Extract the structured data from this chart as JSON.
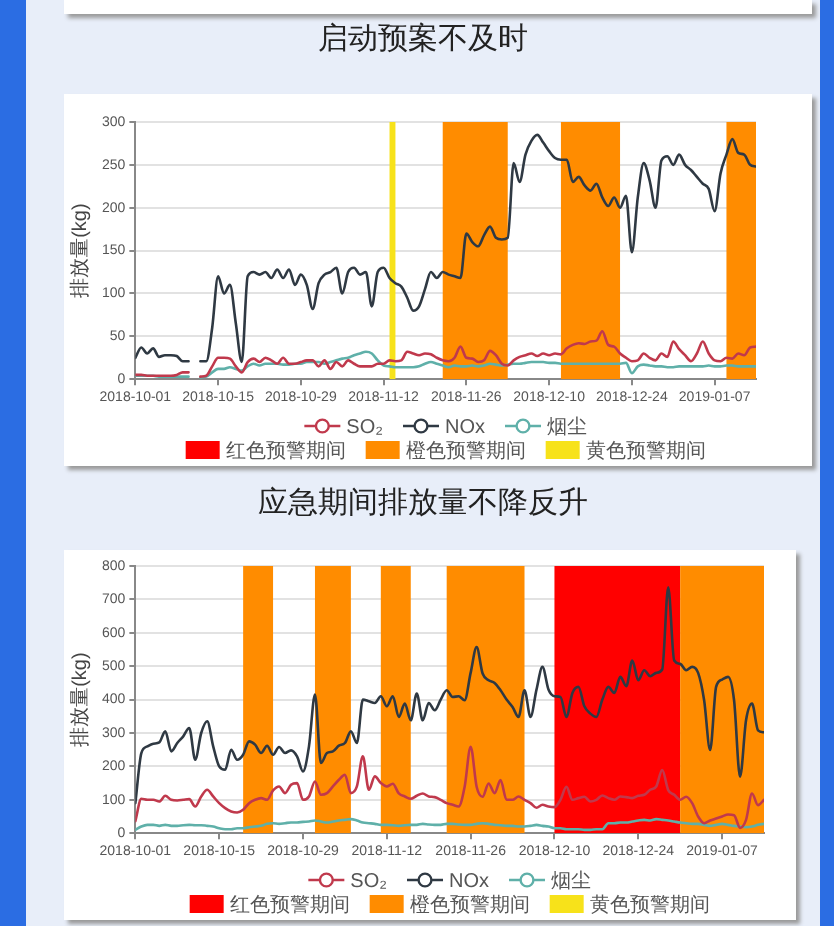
{
  "chart_data": [
    {
      "type": "line",
      "title": "启动预案不及时",
      "ylabel": "排放量(kg)",
      "x": [
        "2018-10-01",
        "2018-10-02",
        "2018-10-03",
        "2018-10-04",
        "2018-10-05",
        "2018-10-06",
        "2018-10-07",
        "2018-10-08",
        "2018-10-09",
        "2018-10-10",
        "2018-10-11",
        "2018-10-12",
        "2018-10-13",
        "2018-10-14",
        "2018-10-15",
        "2018-10-16",
        "2018-10-17",
        "2018-10-18",
        "2018-10-19",
        "2018-10-20",
        "2018-10-21",
        "2018-10-22",
        "2018-10-23",
        "2018-10-24",
        "2018-10-25",
        "2018-10-26",
        "2018-10-27",
        "2018-10-28",
        "2018-10-29",
        "2018-10-30",
        "2018-10-31",
        "2018-11-01",
        "2018-11-02",
        "2018-11-03",
        "2018-11-04",
        "2018-11-05",
        "2018-11-06",
        "2018-11-07",
        "2018-11-08",
        "2018-11-09",
        "2018-11-10",
        "2018-11-11",
        "2018-11-12",
        "2018-11-13",
        "2018-11-14",
        "2018-11-15",
        "2018-11-16",
        "2018-11-17",
        "2018-11-18",
        "2018-11-19",
        "2018-11-20",
        "2018-11-21",
        "2018-11-22",
        "2018-11-23",
        "2018-11-24",
        "2018-11-25",
        "2018-11-26",
        "2018-11-27",
        "2018-11-28",
        "2018-11-29",
        "2018-11-30",
        "2018-12-01",
        "2018-12-02",
        "2018-12-03",
        "2018-12-04",
        "2018-12-05",
        "2018-12-06",
        "2018-12-07",
        "2018-12-08",
        "2018-12-09",
        "2018-12-10",
        "2018-12-11",
        "2018-12-12",
        "2018-12-13",
        "2018-12-14",
        "2018-12-15",
        "2018-12-16",
        "2018-12-17",
        "2018-12-18",
        "2018-12-19",
        "2018-12-20",
        "2018-12-21",
        "2018-12-22",
        "2018-12-23",
        "2018-12-24",
        "2018-12-25",
        "2018-12-26",
        "2018-12-27",
        "2018-12-28",
        "2018-12-29",
        "2018-12-30",
        "2018-12-31",
        "2019-01-01",
        "2019-01-02",
        "2019-01-03",
        "2019-01-04",
        "2019-01-05",
        "2019-01-06",
        "2019-01-07",
        "2019-01-08",
        "2019-01-09",
        "2019-01-10",
        "2019-01-11",
        "2019-01-12",
        "2019-01-13",
        "2019-01-14"
      ],
      "xlim": [
        "2018-10-01",
        "2019-01-14"
      ],
      "xticks": [
        "2018-10-01",
        "2018-10-15",
        "2018-10-29",
        "2018-11-12",
        "2018-11-26",
        "2018-12-10",
        "2018-12-24",
        "2019-01-07"
      ],
      "ylim": [
        0,
        300
      ],
      "yticks": [
        0,
        50,
        100,
        150,
        200,
        250,
        300
      ],
      "grid": "y",
      "legend": "bottom",
      "marker": "none",
      "series": [
        {
          "name": "SO₂",
          "color": "#c0394c",
          "values": [
            5,
            5,
            4,
            4,
            4,
            4,
            4,
            5,
            8,
            8,
            null,
            3,
            4,
            15,
            25,
            25,
            24,
            15,
            8,
            20,
            24,
            20,
            25,
            22,
            18,
            25,
            18,
            18,
            20,
            22,
            22,
            15,
            22,
            12,
            20,
            15,
            22,
            18,
            15,
            15,
            15,
            18,
            18,
            22,
            21,
            22,
            32,
            30,
            28,
            30,
            29,
            25,
            22,
            21,
            25,
            38,
            25,
            24,
            20,
            22,
            33,
            28,
            18,
            16,
            22,
            26,
            28,
            30,
            27,
            30,
            28,
            30,
            29,
            36,
            40,
            42,
            41,
            44,
            45,
            56,
            40,
            38,
            30,
            25,
            21,
            22,
            30,
            25,
            22,
            30,
            26,
            44,
            35,
            28,
            21,
            30,
            44,
            30,
            22,
            21,
            25,
            24,
            30,
            28,
            37,
            38
          ]
        },
        {
          "name": "NOx",
          "color": "#2f3943",
          "values": [
            25,
            37,
            30,
            36,
            26,
            28,
            28,
            27,
            21,
            21,
            null,
            21,
            21,
            60,
            120,
            100,
            110,
            65,
            20,
            120,
            125,
            122,
            125,
            118,
            128,
            118,
            128,
            110,
            122,
            110,
            82,
            112,
            122,
            125,
            130,
            100,
            125,
            130,
            122,
            125,
            85,
            125,
            130,
            118,
            112,
            108,
            95,
            80,
            85,
            105,
            125,
            118,
            125,
            122,
            120,
            118,
            170,
            160,
            155,
            168,
            178,
            165,
            163,
            165,
            252,
            230,
            262,
            278,
            285,
            276,
            266,
            258,
            256,
            256,
            230,
            236,
            226,
            220,
            228,
            212,
            202,
            212,
            200,
            214,
            148,
            212,
            252,
            232,
            200,
            255,
            260,
            250,
            262,
            250,
            244,
            236,
            228,
            222,
            196,
            240,
            262,
            280,
            264,
            262,
            250,
            248
          ]
        },
        {
          "name": "烟尘",
          "color": "#5fb0a9",
          "values": [
            4,
            4,
            4,
            4,
            3,
            3,
            3,
            3,
            3,
            3,
            null,
            2,
            3,
            8,
            12,
            12,
            14,
            12,
            10,
            15,
            18,
            16,
            18,
            18,
            18,
            17,
            17,
            18,
            18,
            20,
            20,
            20,
            18,
            20,
            22,
            24,
            25,
            28,
            30,
            32,
            30,
            22,
            16,
            15,
            14,
            14,
            14,
            14,
            15,
            18,
            20,
            18,
            16,
            14,
            16,
            15,
            15,
            16,
            15,
            16,
            18,
            17,
            16,
            17,
            18,
            18,
            19,
            20,
            20,
            20,
            19,
            19,
            18,
            18,
            18,
            18,
            18,
            18,
            18,
            18,
            18,
            18,
            18,
            19,
            7,
            15,
            17,
            16,
            15,
            15,
            14,
            14,
            15,
            15,
            15,
            15,
            15,
            16,
            15,
            15,
            16,
            16,
            15,
            15,
            15,
            15
          ]
        },
        {
          "name": "红色预警期间",
          "type": "area",
          "color": "#ff0000",
          "values": [
            null,
            null,
            null,
            null,
            null,
            null,
            null,
            null,
            null,
            null,
            null,
            null,
            null,
            null,
            null,
            null,
            null,
            null,
            null,
            null,
            null,
            null,
            null,
            null,
            null,
            null,
            null,
            null,
            null,
            null,
            null,
            null,
            null,
            null,
            null,
            null,
            null,
            null,
            null,
            null,
            null,
            null,
            null,
            null,
            null,
            null,
            null,
            null,
            null,
            null,
            null,
            null,
            null,
            null,
            null,
            null,
            null,
            null,
            null,
            null,
            null,
            null,
            null,
            null,
            null,
            null,
            null,
            null,
            null,
            null,
            null,
            null,
            null,
            null,
            null,
            null,
            null,
            null,
            null,
            null,
            null,
            null,
            null,
            null,
            null,
            null,
            null,
            null,
            null,
            null,
            null,
            null,
            null,
            null,
            null,
            null,
            null,
            null,
            null,
            null,
            null,
            null,
            null,
            null,
            null,
            null
          ]
        },
        {
          "name": "橙色预警期间",
          "type": "area",
          "color": "#ff8c00",
          "values": [
            null,
            null,
            null,
            null,
            null,
            null,
            null,
            null,
            null,
            null,
            null,
            null,
            null,
            null,
            null,
            null,
            null,
            null,
            null,
            null,
            null,
            null,
            null,
            null,
            null,
            null,
            null,
            null,
            null,
            null,
            null,
            null,
            null,
            null,
            null,
            null,
            null,
            null,
            null,
            null,
            null,
            null,
            null,
            null,
            null,
            null,
            null,
            null,
            null,
            null,
            null,
            null,
            null,
            null,
            null,
            null,
            null,
            null,
            null,
            null,
            null,
            null,
            null,
            null,
            null,
            null,
            null,
            null,
            null,
            null,
            null,
            null,
            null,
            null,
            null,
            null,
            null,
            null,
            null,
            null,
            null,
            null,
            null,
            null,
            null,
            null,
            null,
            null,
            null,
            null,
            null,
            null,
            null,
            null,
            null,
            null,
            null,
            null,
            null,
            null,
            null,
            null,
            null,
            null,
            null,
            null
          ]
        },
        {
          "name": "黄色预警期间",
          "type": "area",
          "color": "#f7e21a",
          "values": [
            null,
            null,
            null,
            null,
            null,
            null,
            null,
            null,
            null,
            null,
            null,
            null,
            null,
            null,
            null,
            null,
            null,
            null,
            null,
            null,
            null,
            null,
            null,
            null,
            null,
            null,
            null,
            null,
            null,
            null,
            null,
            null,
            null,
            null,
            null,
            null,
            null,
            null,
            null,
            null,
            null,
            null,
            null,
            null,
            null,
            null,
            null,
            null,
            null,
            null,
            null,
            null,
            null,
            null,
            null,
            null,
            null,
            null,
            null,
            null,
            null,
            null,
            null,
            null,
            null,
            null,
            null,
            null,
            null,
            null,
            null,
            null,
            null,
            null,
            null,
            null,
            null,
            null,
            null,
            null,
            null,
            null,
            null,
            null,
            null,
            null,
            null,
            null,
            null,
            null,
            null,
            null,
            null,
            null,
            null,
            null,
            null,
            null,
            null,
            null,
            null,
            null,
            null,
            null,
            null,
            null
          ]
        }
      ],
      "bands": [
        {
          "axis": "x",
          "from": "2018-11-13",
          "to": "2018-11-14",
          "color": "#f7e21a"
        },
        {
          "axis": "x",
          "from": "2018-11-22",
          "to": "2018-12-03",
          "color": "#ff8c00"
        },
        {
          "axis": "x",
          "from": "2018-12-12",
          "to": "2018-12-22",
          "color": "#ff8c00"
        },
        {
          "axis": "x",
          "from": "2019-01-09",
          "to": "2019-01-14",
          "color": "#ff8c00"
        }
      ]
    },
    {
      "type": "line",
      "title": "应急期间排放量不降反升",
      "ylabel": "排放量(kg)",
      "x": [
        "2018-10-01",
        "2018-10-02",
        "2018-10-03",
        "2018-10-04",
        "2018-10-05",
        "2018-10-06",
        "2018-10-07",
        "2018-10-08",
        "2018-10-09",
        "2018-10-10",
        "2018-10-11",
        "2018-10-12",
        "2018-10-13",
        "2018-10-14",
        "2018-10-15",
        "2018-10-16",
        "2018-10-17",
        "2018-10-18",
        "2018-10-19",
        "2018-10-20",
        "2018-10-21",
        "2018-10-22",
        "2018-10-23",
        "2018-10-24",
        "2018-10-25",
        "2018-10-26",
        "2018-10-27",
        "2018-10-28",
        "2018-10-29",
        "2018-10-30",
        "2018-10-31",
        "2018-11-01",
        "2018-11-02",
        "2018-11-03",
        "2018-11-04",
        "2018-11-05",
        "2018-11-06",
        "2018-11-07",
        "2018-11-08",
        "2018-11-09",
        "2018-11-10",
        "2018-11-11",
        "2018-11-12",
        "2018-11-13",
        "2018-11-14",
        "2018-11-15",
        "2018-11-16",
        "2018-11-17",
        "2018-11-18",
        "2018-11-19",
        "2018-11-20",
        "2018-11-21",
        "2018-11-22",
        "2018-11-23",
        "2018-11-24",
        "2018-11-25",
        "2018-11-26",
        "2018-11-27",
        "2018-11-28",
        "2018-11-29",
        "2018-11-30",
        "2018-12-01",
        "2018-12-02",
        "2018-12-03",
        "2018-12-04",
        "2018-12-05",
        "2018-12-06",
        "2018-12-07",
        "2018-12-08",
        "2018-12-09",
        "2018-12-10",
        "2018-12-11",
        "2018-12-12",
        "2018-12-13",
        "2018-12-14",
        "2018-12-15",
        "2018-12-16",
        "2018-12-17",
        "2018-12-18",
        "2018-12-19",
        "2018-12-20",
        "2018-12-21",
        "2018-12-22",
        "2018-12-23",
        "2018-12-24",
        "2018-12-25",
        "2018-12-26",
        "2018-12-27",
        "2018-12-28",
        "2018-12-29",
        "2018-12-30",
        "2018-12-31",
        "2019-01-01",
        "2019-01-02",
        "2019-01-03",
        "2019-01-04",
        "2019-01-05",
        "2019-01-06",
        "2019-01-07",
        "2019-01-08",
        "2019-01-09",
        "2019-01-10",
        "2019-01-11",
        "2019-01-12",
        "2019-01-13",
        "2019-01-14"
      ],
      "xlim": [
        "2018-10-01",
        "2019-01-14"
      ],
      "xticks": [
        "2018-10-01",
        "2018-10-15",
        "2018-10-29",
        "2018-11-12",
        "2018-11-26",
        "2018-12-10",
        "2018-12-24",
        "2019-01-07"
      ],
      "ylim": [
        0,
        800
      ],
      "yticks": [
        0,
        100,
        200,
        300,
        400,
        500,
        600,
        700,
        800
      ],
      "grid": "y",
      "legend": "bottom",
      "marker": "none",
      "series": [
        {
          "name": "SO₂",
          "color": "#c0394c",
          "values": [
            36,
            103,
            100,
            100,
            95,
            112,
            100,
            98,
            100,
            102,
            80,
            110,
            130,
            110,
            90,
            75,
            65,
            62,
            70,
            90,
            100,
            105,
            100,
            128,
            140,
            120,
            145,
            150,
            100,
            110,
            155,
            115,
            120,
            140,
            160,
            175,
            120,
            140,
            230,
            130,
            170,
            150,
            140,
            148,
            119,
            110,
            103,
            112,
            119,
            110,
            108,
            100,
            90,
            85,
            80,
            139,
            259,
            139,
            109,
            149,
            120,
            159,
            100,
            100,
            110,
            100,
            90,
            76,
            85,
            80,
            78,
            100,
            139,
            100,
            105,
            109,
            95,
            100,
            113,
            105,
            100,
            110,
            108,
            105,
            112,
            115,
            130,
            140,
            189,
            129,
            115,
            100,
            109,
            90,
            50,
            30,
            38,
            44,
            50,
            56,
            54,
            16,
            40,
            119,
            84,
            100
          ]
        },
        {
          "name": "NOx",
          "color": "#2f3943",
          "values": [
            90,
            240,
            260,
            268,
            272,
            305,
            245,
            270,
            290,
            315,
            220,
            300,
            335,
            260,
            200,
            190,
            250,
            220,
            235,
            275,
            265,
            240,
            262,
            235,
            258,
            240,
            248,
            230,
            185,
            260,
            415,
            210,
            240,
            245,
            262,
            270,
            305,
            270,
            400,
            395,
            390,
            410,
            380,
            410,
            348,
            388,
            338,
            418,
            338,
            390,
            368,
            400,
            428,
            408,
            410,
            398,
            480,
            557,
            478,
            458,
            450,
            428,
            400,
            378,
            348,
            428,
            348,
            430,
            498,
            430,
            410,
            408,
            348,
            420,
            438,
            380,
            358,
            348,
            400,
            438,
            420,
            468,
            440,
            517,
            458,
            488,
            470,
            480,
            490,
            736,
            517,
            507,
            488,
            498,
            480,
            398,
            249,
            438,
            460,
            468,
            398,
            169,
            338,
            388,
            308,
            302
          ]
        },
        {
          "name": "烟尘",
          "color": "#5fb0a9",
          "values": [
            10,
            20,
            25,
            25,
            22,
            25,
            22,
            22,
            24,
            25,
            24,
            24,
            22,
            20,
            15,
            12,
            12,
            15,
            15,
            18,
            20,
            22,
            28,
            30,
            28,
            30,
            32,
            32,
            34,
            35,
            38,
            35,
            32,
            35,
            38,
            40,
            42,
            38,
            32,
            30,
            28,
            25,
            25,
            24,
            22,
            24,
            25,
            25,
            28,
            26,
            25,
            25,
            28,
            28,
            26,
            25,
            25,
            28,
            30,
            28,
            25,
            24,
            22,
            22,
            20,
            20,
            22,
            25,
            22,
            20,
            15,
            15,
            12,
            12,
            12,
            10,
            10,
            12,
            12,
            30,
            30,
            32,
            32,
            35,
            38,
            40,
            38,
            42,
            40,
            38,
            35,
            32,
            30,
            28,
            28,
            25,
            22,
            25,
            28,
            25,
            22,
            20,
            18,
            20,
            25,
            28
          ]
        },
        {
          "name": "红色预警期间",
          "type": "area",
          "color": "#ff0000",
          "values": [
            null,
            null,
            null,
            null,
            null,
            null,
            null,
            null,
            null,
            null,
            null,
            null,
            null,
            null,
            null,
            null,
            null,
            null,
            null,
            null,
            null,
            null,
            null,
            null,
            null,
            null,
            null,
            null,
            null,
            null,
            null,
            null,
            null,
            null,
            null,
            null,
            null,
            null,
            null,
            null,
            null,
            null,
            null,
            null,
            null,
            null,
            null,
            null,
            null,
            null,
            null,
            null,
            null,
            null,
            null,
            null,
            null,
            null,
            null,
            null,
            null,
            null,
            null,
            null,
            null,
            null,
            null,
            null,
            null,
            null,
            null,
            null,
            null,
            null,
            null,
            null,
            null,
            null,
            null,
            null,
            null,
            null,
            null,
            null,
            null,
            null,
            null,
            null,
            null,
            null,
            null,
            null,
            null,
            null,
            null,
            null,
            null,
            null,
            null,
            null,
            null,
            null,
            null,
            null,
            null,
            null
          ]
        },
        {
          "name": "橙色预警期间",
          "type": "area",
          "color": "#ff8c00",
          "values": [
            null,
            null,
            null,
            null,
            null,
            null,
            null,
            null,
            null,
            null,
            null,
            null,
            null,
            null,
            null,
            null,
            null,
            null,
            null,
            null,
            null,
            null,
            null,
            null,
            null,
            null,
            null,
            null,
            null,
            null,
            null,
            null,
            null,
            null,
            null,
            null,
            null,
            null,
            null,
            null,
            null,
            null,
            null,
            null,
            null,
            null,
            null,
            null,
            null,
            null,
            null,
            null,
            null,
            null,
            null,
            null,
            null,
            null,
            null,
            null,
            null,
            null,
            null,
            null,
            null,
            null,
            null,
            null,
            null,
            null,
            null,
            null,
            null,
            null,
            null,
            null,
            null,
            null,
            null,
            null,
            null,
            null,
            null,
            null,
            null,
            null,
            null,
            null,
            null,
            null,
            null,
            null,
            null,
            null,
            null,
            null,
            null,
            null,
            null,
            null,
            null,
            null,
            null,
            null,
            null,
            null
          ]
        },
        {
          "name": "黄色预警期间",
          "type": "area",
          "color": "#f7e21a",
          "values": [
            null,
            null,
            null,
            null,
            null,
            null,
            null,
            null,
            null,
            null,
            null,
            null,
            null,
            null,
            null,
            null,
            null,
            null,
            null,
            null,
            null,
            null,
            null,
            null,
            null,
            null,
            null,
            null,
            null,
            null,
            null,
            null,
            null,
            null,
            null,
            null,
            null,
            null,
            null,
            null,
            null,
            null,
            null,
            null,
            null,
            null,
            null,
            null,
            null,
            null,
            null,
            null,
            null,
            null,
            null,
            null,
            null,
            null,
            null,
            null,
            null,
            null,
            null,
            null,
            null,
            null,
            null,
            null,
            null,
            null,
            null,
            null,
            null,
            null,
            null,
            null,
            null,
            null,
            null,
            null,
            null,
            null,
            null,
            null,
            null,
            null,
            null,
            null,
            null,
            null,
            null,
            null,
            null,
            null,
            null,
            null,
            null,
            null,
            null,
            null,
            null,
            null,
            null,
            null,
            null,
            null
          ]
        }
      ],
      "bands": [
        {
          "axis": "x",
          "from": "2018-10-19",
          "to": "2018-10-24",
          "color": "#ff8c00"
        },
        {
          "axis": "x",
          "from": "2018-10-31",
          "to": "2018-11-06",
          "color": "#ff8c00"
        },
        {
          "axis": "x",
          "from": "2018-11-11",
          "to": "2018-11-16",
          "color": "#ff8c00"
        },
        {
          "axis": "x",
          "from": "2018-11-22",
          "to": "2018-12-05",
          "color": "#ff8c00"
        },
        {
          "axis": "x",
          "from": "2018-12-10",
          "to": "2018-12-31",
          "color": "#ff0000"
        },
        {
          "axis": "x",
          "from": "2018-12-31",
          "to": "2019-01-14",
          "color": "#ff8c00"
        }
      ]
    }
  ]
}
